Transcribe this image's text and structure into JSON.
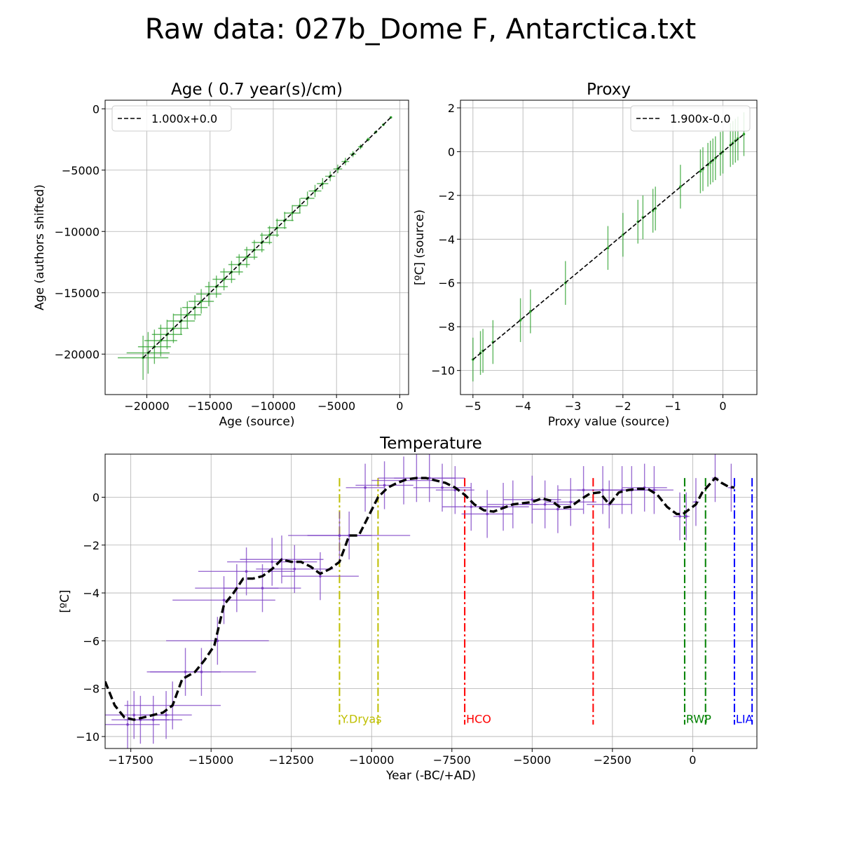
{
  "figure_title": "Raw data: 027b_Dome F, Antarctica.txt",
  "chart_data": [
    {
      "id": "age",
      "type": "scatter",
      "title": "Age ( 0.7 year(s)/cm)",
      "xlabel": "Age (source)",
      "ylabel": "Age (authors shifted)",
      "xlim": [
        -23300,
        700
      ],
      "ylim": [
        -23300,
        700
      ],
      "xticks": [
        -20000,
        -15000,
        -10000,
        -5000,
        0
      ],
      "yticks": [
        -20000,
        -15000,
        -10000,
        -5000,
        0
      ],
      "xtick_labels": [
        "−20000",
        "−15000",
        "−10000",
        "−5000",
        "0"
      ],
      "ytick_labels": [
        "−20000",
        "−15000",
        "−10000",
        "−5000",
        "0"
      ],
      "grid": true,
      "legend": {
        "location": "upper-left",
        "entries": [
          "1.000x+0.0"
        ]
      },
      "fit": {
        "slope": 1.0,
        "intercept": 0.0,
        "x_range": [
          -20300,
          -700
        ],
        "style": "dashed",
        "color": "#000000"
      },
      "error_color": "#2ca02c",
      "points": [
        {
          "x": -20300,
          "y": -20300,
          "xerr": 2000,
          "yerr": 1800
        },
        {
          "x": -19900,
          "y": -19900,
          "xerr": 1700,
          "yerr": 1700
        },
        {
          "x": -19400,
          "y": -19400,
          "xerr": 1300,
          "yerr": 1400
        },
        {
          "x": -18900,
          "y": -18900,
          "xerr": 1300,
          "yerr": 1300
        },
        {
          "x": -18400,
          "y": -18400,
          "xerr": 1200,
          "yerr": 1200
        },
        {
          "x": -17900,
          "y": -17900,
          "xerr": 1200,
          "yerr": 1200
        },
        {
          "x": -17300,
          "y": -17300,
          "xerr": 1100,
          "yerr": 1100
        },
        {
          "x": -16800,
          "y": -16800,
          "xerr": 1100,
          "yerr": 1100
        },
        {
          "x": -16200,
          "y": -16200,
          "xerr": 1000,
          "yerr": 1000
        },
        {
          "x": -15700,
          "y": -15700,
          "xerr": 1000,
          "yerr": 1000
        },
        {
          "x": -15100,
          "y": -15100,
          "xerr": 1000,
          "yerr": 1000
        },
        {
          "x": -14500,
          "y": -14500,
          "xerr": 900,
          "yerr": 900
        },
        {
          "x": -13900,
          "y": -13900,
          "xerr": 900,
          "yerr": 900
        },
        {
          "x": -13300,
          "y": -13300,
          "xerr": 900,
          "yerr": 900
        },
        {
          "x": -12700,
          "y": -12700,
          "xerr": 850,
          "yerr": 850
        },
        {
          "x": -12100,
          "y": -12100,
          "xerr": 850,
          "yerr": 850
        },
        {
          "x": -11500,
          "y": -11500,
          "xerr": 800,
          "yerr": 800
        },
        {
          "x": -10900,
          "y": -10900,
          "xerr": 800,
          "yerr": 800
        },
        {
          "x": -10300,
          "y": -10300,
          "xerr": 750,
          "yerr": 750
        },
        {
          "x": -9700,
          "y": -9700,
          "xerr": 750,
          "yerr": 750
        },
        {
          "x": -9100,
          "y": -9100,
          "xerr": 700,
          "yerr": 700
        },
        {
          "x": -8500,
          "y": -8500,
          "xerr": 650,
          "yerr": 650
        },
        {
          "x": -7900,
          "y": -7900,
          "xerr": 600,
          "yerr": 600
        },
        {
          "x": -7300,
          "y": -7300,
          "xerr": 550,
          "yerr": 550
        },
        {
          "x": -6700,
          "y": -6700,
          "xerr": 500,
          "yerr": 500
        },
        {
          "x": -6100,
          "y": -6100,
          "xerr": 450,
          "yerr": 450
        },
        {
          "x": -5500,
          "y": -5500,
          "xerr": 400,
          "yerr": 400
        },
        {
          "x": -4900,
          "y": -4900,
          "xerr": 350,
          "yerr": 350
        },
        {
          "x": -4300,
          "y": -4300,
          "xerr": 300,
          "yerr": 300
        },
        {
          "x": -3700,
          "y": -3700,
          "xerr": 250,
          "yerr": 250
        },
        {
          "x": -3100,
          "y": -3100,
          "xerr": 200,
          "yerr": 200
        },
        {
          "x": -2500,
          "y": -2500,
          "xerr": 150,
          "yerr": 150
        },
        {
          "x": -1900,
          "y": -1900,
          "xerr": 120,
          "yerr": 120
        },
        {
          "x": -1300,
          "y": -1300,
          "xerr": 100,
          "yerr": 100
        },
        {
          "x": -700,
          "y": -700,
          "xerr": 80,
          "yerr": 80
        }
      ]
    },
    {
      "id": "proxy",
      "type": "scatter",
      "title": "Proxy",
      "xlabel": "Proxy value (source)",
      "ylabel": "[ºC] (source)",
      "xlim": [
        -5.25,
        0.68
      ],
      "ylim": [
        -11.1,
        2.35
      ],
      "xticks": [
        -5,
        -4,
        -3,
        -2,
        -1,
        0
      ],
      "yticks": [
        -10,
        -8,
        -6,
        -4,
        -2,
        0,
        2
      ],
      "xtick_labels": [
        "−5",
        "−4",
        "−3",
        "−2",
        "−1",
        "0"
      ],
      "ytick_labels": [
        "−10",
        "−8",
        "−6",
        "−4",
        "−2",
        "0",
        "2"
      ],
      "grid": true,
      "legend": {
        "location": "upper-right",
        "entries": [
          "1.900x-0.0"
        ]
      },
      "fit": {
        "slope": 1.9,
        "intercept": 0.0,
        "x_range": [
          -5.0,
          0.42
        ],
        "style": "dashed",
        "color": "#000000"
      },
      "error_color": "#2ca02c",
      "points": [
        {
          "x": -5.0,
          "y": -9.5,
          "yerr": 1.0
        },
        {
          "x": -4.85,
          "y": -9.2,
          "yerr": 1.0
        },
        {
          "x": -4.8,
          "y": -9.1,
          "yerr": 1.0
        },
        {
          "x": -4.6,
          "y": -8.7,
          "yerr": 1.0
        },
        {
          "x": -4.05,
          "y": -7.7,
          "yerr": 1.0
        },
        {
          "x": -3.85,
          "y": -7.3,
          "yerr": 1.0
        },
        {
          "x": -3.15,
          "y": -6.0,
          "yerr": 1.0
        },
        {
          "x": -2.3,
          "y": -4.4,
          "yerr": 1.0
        },
        {
          "x": -2.0,
          "y": -3.8,
          "yerr": 1.0
        },
        {
          "x": -1.7,
          "y": -3.2,
          "yerr": 1.0
        },
        {
          "x": -1.6,
          "y": -3.0,
          "yerr": 1.0
        },
        {
          "x": -1.4,
          "y": -2.7,
          "yerr": 1.0
        },
        {
          "x": -1.35,
          "y": -2.6,
          "yerr": 1.0
        },
        {
          "x": -0.85,
          "y": -1.6,
          "yerr": 1.0
        },
        {
          "x": -0.45,
          "y": -0.9,
          "yerr": 1.0
        },
        {
          "x": -0.4,
          "y": -0.8,
          "yerr": 1.0
        },
        {
          "x": -0.3,
          "y": -0.6,
          "yerr": 1.0
        },
        {
          "x": -0.25,
          "y": -0.5,
          "yerr": 1.0
        },
        {
          "x": -0.2,
          "y": -0.4,
          "yerr": 1.0
        },
        {
          "x": -0.15,
          "y": -0.3,
          "yerr": 1.0
        },
        {
          "x": -0.05,
          "y": -0.1,
          "yerr": 1.0
        },
        {
          "x": 0.0,
          "y": 0.0,
          "yerr": 1.0
        },
        {
          "x": 0.15,
          "y": 0.3,
          "yerr": 1.0
        },
        {
          "x": 0.2,
          "y": 0.4,
          "yerr": 1.0
        },
        {
          "x": 0.25,
          "y": 0.5,
          "yerr": 1.0
        },
        {
          "x": 0.3,
          "y": 0.6,
          "yerr": 1.0
        },
        {
          "x": 0.42,
          "y": 0.8,
          "yerr": 1.0
        }
      ]
    },
    {
      "id": "temperature",
      "type": "line",
      "title": "Temperature",
      "xlabel": "Year (-BC/+AD)",
      "ylabel": "[ºC]",
      "xlim": [
        -18300,
        2000
      ],
      "ylim": [
        -10.5,
        1.8
      ],
      "xticks": [
        -17500,
        -15000,
        -12500,
        -10000,
        -7500,
        -5000,
        -2500,
        0
      ],
      "yticks": [
        -10,
        -8,
        -6,
        -4,
        -2,
        0
      ],
      "xtick_labels": [
        "−17500",
        "−15000",
        "−12500",
        "−10000",
        "−7500",
        "−5000",
        "−2500",
        "0"
      ],
      "ytick_labels": [
        "−10",
        "−8",
        "−6",
        "−4",
        "−2",
        "0"
      ],
      "grid": true,
      "error_color": "#7b3fc4",
      "points": [
        {
          "x": -17600,
          "y": -9.5,
          "xerr": 1000,
          "yerr": 1.0
        },
        {
          "x": -17400,
          "y": -9.1,
          "xerr": 1100,
          "yerr": 1.0
        },
        {
          "x": -17200,
          "y": -9.3,
          "xerr": 900,
          "yerr": 1.0
        },
        {
          "x": -16800,
          "y": -9.3,
          "xerr": 900,
          "yerr": 1.0
        },
        {
          "x": -16400,
          "y": -9.1,
          "xerr": 800,
          "yerr": 1.0
        },
        {
          "x": -16200,
          "y": -8.7,
          "xerr": 1500,
          "yerr": 1.0
        },
        {
          "x": -15800,
          "y": -7.3,
          "xerr": 1100,
          "yerr": 1.0
        },
        {
          "x": -15300,
          "y": -7.3,
          "xerr": 1700,
          "yerr": 1.0
        },
        {
          "x": -14800,
          "y": -6.0,
          "xerr": 1600,
          "yerr": 1.0
        },
        {
          "x": -14600,
          "y": -4.3,
          "xerr": 1600,
          "yerr": 1.0
        },
        {
          "x": -14200,
          "y": -3.8,
          "xerr": 1300,
          "yerr": 1.0
        },
        {
          "x": -13900,
          "y": -3.1,
          "xerr": 1500,
          "yerr": 1.0
        },
        {
          "x": -13400,
          "y": -3.8,
          "xerr": 1200,
          "yerr": 1.0
        },
        {
          "x": -13100,
          "y": -2.7,
          "xerr": 1400,
          "yerr": 1.0
        },
        {
          "x": -12800,
          "y": -2.6,
          "xerr": 1300,
          "yerr": 1.0
        },
        {
          "x": -12400,
          "y": -3.0,
          "xerr": 1200,
          "yerr": 1.0
        },
        {
          "x": -11600,
          "y": -3.3,
          "xerr": 1200,
          "yerr": 1.0
        },
        {
          "x": -11000,
          "y": -1.6,
          "xerr": 1000,
          "yerr": 1.0
        },
        {
          "x": -10700,
          "y": -1.6,
          "xerr": 1900,
          "yerr": 1.0
        },
        {
          "x": -10200,
          "y": 0.4,
          "xerr": 600,
          "yerr": 1.0
        },
        {
          "x": -9600,
          "y": 0.5,
          "xerr": 900,
          "yerr": 1.0
        },
        {
          "x": -9000,
          "y": 0.7,
          "xerr": 1000,
          "yerr": 1.0
        },
        {
          "x": -8600,
          "y": 0.8,
          "xerr": 1200,
          "yerr": 1.0
        },
        {
          "x": -8200,
          "y": 0.8,
          "xerr": 1100,
          "yerr": 1.0
        },
        {
          "x": -7800,
          "y": 0.4,
          "xerr": 900,
          "yerr": 1.0
        },
        {
          "x": -7400,
          "y": 0.3,
          "xerr": 600,
          "yerr": 1.0
        },
        {
          "x": -6900,
          "y": -0.4,
          "xerr": 900,
          "yerr": 1.0
        },
        {
          "x": -6400,
          "y": -0.7,
          "xerr": 800,
          "yerr": 1.0
        },
        {
          "x": -5900,
          "y": -0.4,
          "xerr": 800,
          "yerr": 1.0
        },
        {
          "x": -5600,
          "y": -0.3,
          "xerr": 800,
          "yerr": 1.0
        },
        {
          "x": -5000,
          "y": -0.1,
          "xerr": 900,
          "yerr": 1.0
        },
        {
          "x": -4600,
          "y": -0.3,
          "xerr": 800,
          "yerr": 1.0
        },
        {
          "x": -4200,
          "y": -0.5,
          "xerr": 800,
          "yerr": 1.0
        },
        {
          "x": -3800,
          "y": -0.2,
          "xerr": 800,
          "yerr": 1.0
        },
        {
          "x": -3400,
          "y": 0.3,
          "xerr": 800,
          "yerr": 1.0
        },
        {
          "x": -2800,
          "y": 0.3,
          "xerr": 800,
          "yerr": 1.0
        },
        {
          "x": -2600,
          "y": -0.3,
          "xerr": 700,
          "yerr": 1.0
        },
        {
          "x": -2200,
          "y": 0.3,
          "xerr": 700,
          "yerr": 1.0
        },
        {
          "x": -1900,
          "y": 0.3,
          "xerr": 800,
          "yerr": 1.0
        },
        {
          "x": -1500,
          "y": 0.4,
          "xerr": 700,
          "yerr": 1.0
        },
        {
          "x": -1200,
          "y": 0.3,
          "xerr": 600,
          "yerr": 1.0
        },
        {
          "x": -400,
          "y": -0.8,
          "xerr": 200,
          "yerr": 1.0
        },
        {
          "x": -200,
          "y": -0.8,
          "xerr": 100,
          "yerr": 1.0
        },
        {
          "x": 100,
          "y": -0.2,
          "xerr": 100,
          "yerr": 1.0
        },
        {
          "x": 700,
          "y": 0.8,
          "xerr": 100,
          "yerr": 1.0
        },
        {
          "x": 1200,
          "y": 0.4,
          "xerr": 100,
          "yerr": 1.0
        }
      ],
      "smooth": {
        "style": "dashed",
        "color": "#000000",
        "x": [
          -18300,
          -18000,
          -17700,
          -17400,
          -17100,
          -16800,
          -16500,
          -16200,
          -15900,
          -15500,
          -15200,
          -14900,
          -14600,
          -14300,
          -14000,
          -13700,
          -13400,
          -13100,
          -12800,
          -12500,
          -12200,
          -11900,
          -11600,
          -11300,
          -11000,
          -10700,
          -10400,
          -10100,
          -9800,
          -9500,
          -9200,
          -8900,
          -8600,
          -8300,
          -8000,
          -7700,
          -7400,
          -7100,
          -6800,
          -6500,
          -6200,
          -5900,
          -5600,
          -5300,
          -5000,
          -4700,
          -4400,
          -4100,
          -3800,
          -3500,
          -3200,
          -2900,
          -2600,
          -2300,
          -2000,
          -1700,
          -1400,
          -1100,
          -800,
          -500,
          -300,
          -100,
          100,
          300,
          500,
          700,
          900,
          1100,
          1300
        ],
        "y": [
          -7.7,
          -8.7,
          -9.2,
          -9.3,
          -9.2,
          -9.1,
          -9.0,
          -8.7,
          -7.6,
          -7.3,
          -6.8,
          -6.2,
          -4.5,
          -4.0,
          -3.4,
          -3.4,
          -3.3,
          -3.0,
          -2.6,
          -2.7,
          -2.7,
          -2.9,
          -3.2,
          -3.0,
          -2.7,
          -1.6,
          -1.6,
          -0.8,
          0.0,
          0.4,
          0.6,
          0.75,
          0.8,
          0.8,
          0.7,
          0.6,
          0.4,
          0.1,
          -0.3,
          -0.55,
          -0.6,
          -0.45,
          -0.3,
          -0.25,
          -0.2,
          -0.05,
          -0.15,
          -0.45,
          -0.4,
          -0.1,
          0.15,
          0.2,
          -0.3,
          0.2,
          0.3,
          0.35,
          0.35,
          0.1,
          -0.4,
          -0.7,
          -0.7,
          -0.5,
          -0.3,
          0.2,
          0.5,
          0.8,
          0.6,
          0.45,
          0.4
        ]
      },
      "events": [
        {
          "label": "Y.Dryas",
          "color": "#bfbf00",
          "x": [
            -11000,
            -9800
          ]
        },
        {
          "label": "HCO",
          "color": "#ff0000",
          "x": [
            -7100,
            -3100
          ]
        },
        {
          "label": "RWP",
          "color": "#008000",
          "x": [
            -250,
            400
          ]
        },
        {
          "label": "LIA",
          "color": "#0000ff",
          "x": [
            1300,
            1850
          ]
        }
      ]
    }
  ]
}
